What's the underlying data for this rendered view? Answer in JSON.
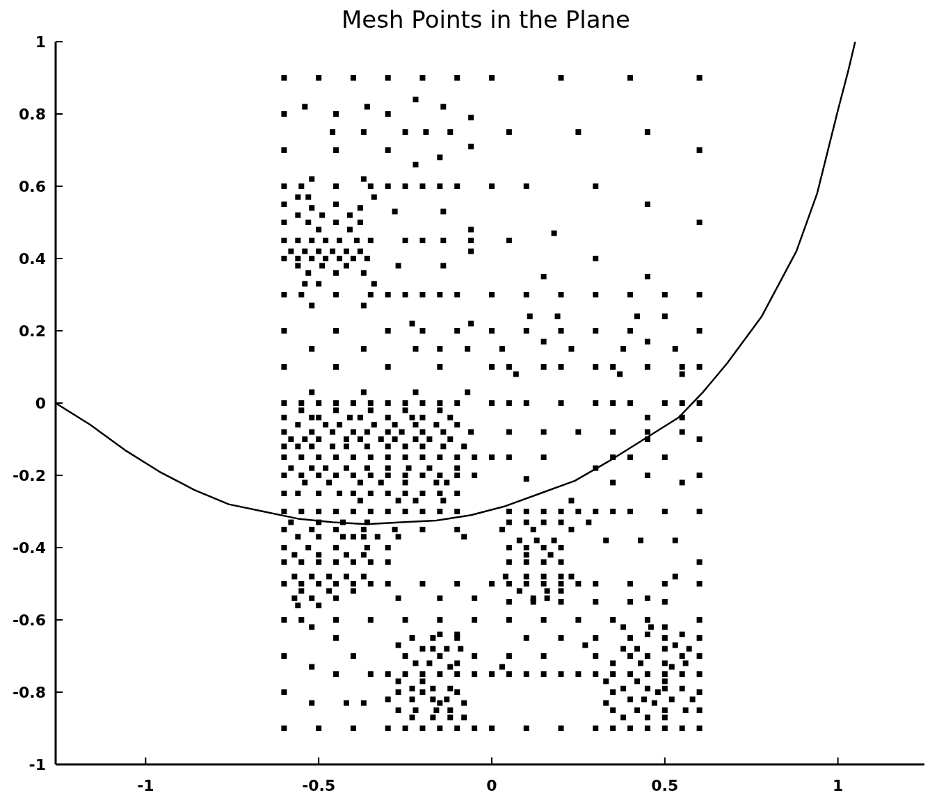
{
  "chart_data": {
    "type": "scatter",
    "title": "Mesh Points in the Plane",
    "xlim": [
      -1.26,
      1.25
    ],
    "ylim": [
      -1,
      1
    ],
    "xticks": [
      -1,
      -0.5,
      0,
      0.5,
      1
    ],
    "yticks": [
      -1,
      -0.8,
      -0.6,
      -0.4,
      -0.2,
      0,
      0.2,
      0.4,
      0.6,
      0.8,
      1
    ],
    "grid": false,
    "marker": "square",
    "series": [
      {
        "color": "#000000",
        "x": [
          -0.6,
          -0.5,
          -0.4,
          -0.3,
          -0.2,
          -0.1,
          0,
          0.2,
          0.4,
          0.6
        ],
        "values": [
          0.9,
          0.9,
          0.9,
          0.9,
          0.9,
          0.9,
          0.9,
          0.9,
          0.9,
          0.9
        ]
      },
      {
        "color": "#000000",
        "x": [
          -0.22,
          -0.54,
          -0.36,
          -0.14,
          -0.6,
          -0.45,
          -0.3,
          -0.06
        ],
        "values": [
          0.84,
          0.82,
          0.82,
          0.82,
          0.8,
          0.8,
          0.8,
          0.79
        ]
      },
      {
        "color": "#000000",
        "x": [
          -0.46,
          -0.37,
          -0.25,
          -0.19,
          -0.12,
          0.05,
          0.25,
          0.45
        ],
        "values": [
          0.75,
          0.75,
          0.75,
          0.75,
          0.75,
          0.75,
          0.75,
          0.75
        ]
      },
      {
        "color": "#000000",
        "x": [
          -0.06,
          -0.6,
          -0.45,
          -0.3,
          0.6,
          -0.15,
          -0.22,
          -0.52,
          -0.37
        ],
        "values": [
          0.71,
          0.7,
          0.7,
          0.7,
          0.7,
          0.68,
          0.66,
          0.62,
          0.62
        ]
      },
      {
        "color": "#000000",
        "x": [
          -0.6,
          -0.55,
          -0.45,
          -0.35,
          -0.3,
          -0.25,
          -0.2,
          -0.15,
          -0.1,
          0,
          0.1,
          0.3
        ],
        "values": [
          0.6,
          0.6,
          0.6,
          0.6,
          0.6,
          0.6,
          0.6,
          0.6,
          0.6,
          0.6,
          0.6,
          0.6
        ]
      },
      {
        "color": "#000000",
        "x": [
          -0.56,
          -0.53,
          -0.34,
          -0.6,
          -0.45,
          0.45,
          -0.52,
          -0.38,
          -0.28,
          -0.14
        ],
        "values": [
          0.57,
          0.57,
          0.57,
          0.55,
          0.55,
          0.55,
          0.54,
          0.54,
          0.53,
          0.53
        ]
      },
      {
        "color": "#000000",
        "x": [
          -0.56,
          -0.49,
          -0.41,
          -0.6,
          -0.53,
          -0.45,
          -0.38,
          0.6,
          -0.5,
          -0.41,
          -0.06,
          0.18
        ],
        "values": [
          0.52,
          0.52,
          0.52,
          0.5,
          0.5,
          0.5,
          0.5,
          0.5,
          0.48,
          0.48,
          0.48,
          0.47
        ]
      },
      {
        "color": "#000000",
        "x": [
          -0.6,
          -0.56,
          -0.52,
          -0.48,
          -0.44,
          -0.39,
          -0.35,
          -0.25,
          -0.2,
          -0.14,
          -0.06,
          0.05
        ],
        "values": [
          0.45,
          0.45,
          0.45,
          0.45,
          0.45,
          0.45,
          0.45,
          0.45,
          0.45,
          0.45,
          0.45,
          0.45
        ]
      },
      {
        "color": "#000000",
        "x": [
          -0.58,
          -0.54,
          -0.5,
          -0.46,
          -0.42,
          -0.38,
          -0.06
        ],
        "values": [
          0.42,
          0.42,
          0.42,
          0.42,
          0.42,
          0.42,
          0.42
        ]
      },
      {
        "color": "#000000",
        "x": [
          -0.6,
          -0.56,
          -0.52,
          -0.48,
          -0.44,
          -0.4,
          -0.36,
          0.3
        ],
        "values": [
          0.4,
          0.4,
          0.4,
          0.4,
          0.4,
          0.4,
          0.4,
          0.4
        ]
      },
      {
        "color": "#000000",
        "x": [
          -0.56,
          -0.49,
          -0.42,
          -0.27,
          -0.14,
          -0.53,
          -0.45,
          -0.37,
          0.15,
          0.45,
          -0.54,
          -0.5,
          -0.34
        ],
        "values": [
          0.38,
          0.38,
          0.38,
          0.38,
          0.38,
          0.36,
          0.36,
          0.36,
          0.35,
          0.35,
          0.33,
          0.33,
          0.33
        ]
      },
      {
        "color": "#000000",
        "x": [
          -0.6,
          -0.55,
          -0.45,
          -0.35,
          -0.3,
          -0.25,
          -0.2,
          -0.15,
          -0.1,
          0,
          0.1,
          0.2,
          0.3,
          0.4,
          0.5,
          0.6
        ],
        "values": [
          0.3,
          0.3,
          0.3,
          0.3,
          0.3,
          0.3,
          0.3,
          0.3,
          0.3,
          0.3,
          0.3,
          0.3,
          0.3,
          0.3,
          0.3,
          0.3
        ]
      },
      {
        "color": "#000000",
        "x": [
          -0.52,
          -0.37,
          0.11,
          0.19,
          0.42,
          0.5,
          -0.23,
          -0.06
        ],
        "values": [
          0.27,
          0.27,
          0.24,
          0.24,
          0.24,
          0.24,
          0.22,
          0.22
        ]
      },
      {
        "color": "#000000",
        "x": [
          -0.6,
          -0.45,
          -0.3,
          -0.2,
          -0.1,
          0,
          0.1,
          0.2,
          0.3,
          0.4,
          0.6,
          0.15,
          0.45
        ],
        "values": [
          0.2,
          0.2,
          0.2,
          0.2,
          0.2,
          0.2,
          0.2,
          0.2,
          0.2,
          0.2,
          0.2,
          0.17,
          0.17
        ]
      },
      {
        "color": "#000000",
        "x": [
          -0.52,
          -0.37,
          -0.22,
          -0.15,
          -0.07,
          0.03,
          0.23,
          0.38,
          0.53
        ],
        "values": [
          0.15,
          0.15,
          0.15,
          0.15,
          0.15,
          0.15,
          0.15,
          0.15,
          0.15
        ]
      },
      {
        "color": "#000000",
        "x": [
          -0.6,
          -0.45,
          -0.3,
          -0.15,
          0,
          0.05,
          0.15,
          0.2,
          0.3,
          0.35,
          0.45,
          0.55,
          0.6,
          0.07,
          0.37,
          0.55
        ],
        "values": [
          0.1,
          0.1,
          0.1,
          0.1,
          0.1,
          0.1,
          0.1,
          0.1,
          0.1,
          0.1,
          0.1,
          0.1,
          0.1,
          0.08,
          0.08,
          0.08
        ]
      },
      {
        "color": "#000000",
        "x": [
          -0.52,
          -0.37,
          -0.22,
          -0.07
        ],
        "values": [
          0.03,
          0.03,
          0.03,
          0.03
        ]
      },
      {
        "color": "#000000",
        "x": [
          -0.6,
          -0.55,
          -0.5,
          -0.45,
          -0.4,
          -0.35,
          -0.3,
          -0.25,
          -0.2,
          -0.15,
          -0.1,
          0,
          0.05,
          0.1,
          0.2,
          0.3,
          0.35,
          0.4,
          0.5,
          0.55,
          0.6
        ],
        "values": [
          0,
          0,
          0,
          0,
          0,
          0,
          0,
          0,
          0,
          0,
          0,
          0,
          0,
          0,
          0,
          0,
          0,
          0,
          0,
          0,
          0
        ]
      },
      {
        "color": "#000000",
        "x": [
          -0.55,
          -0.45,
          -0.35,
          -0.25,
          -0.15
        ],
        "values": [
          -0.02,
          -0.02,
          -0.02,
          -0.02,
          -0.02
        ]
      },
      {
        "color": "#000000",
        "x": [
          -0.6,
          -0.52,
          -0.5,
          -0.41,
          -0.38,
          -0.3,
          -0.23,
          -0.2,
          -0.12,
          0.45,
          0.55
        ],
        "values": [
          -0.04,
          -0.04,
          -0.04,
          -0.04,
          -0.04,
          -0.04,
          -0.04,
          -0.04,
          -0.04,
          -0.04,
          -0.04
        ]
      },
      {
        "color": "#000000",
        "x": [
          -0.56,
          -0.48,
          -0.44,
          -0.34,
          -0.28,
          -0.22,
          -0.16,
          -0.1
        ],
        "values": [
          -0.06,
          -0.06,
          -0.06,
          -0.06,
          -0.06,
          -0.06,
          -0.06,
          -0.06
        ]
      },
      {
        "color": "#000000",
        "x": [
          -0.6,
          -0.52,
          -0.46,
          -0.4,
          -0.36,
          -0.3,
          -0.26,
          -0.2,
          -0.14,
          -0.06,
          0.05,
          0.15,
          0.25,
          0.35,
          0.45,
          0.55
        ],
        "values": [
          -0.08,
          -0.08,
          -0.08,
          -0.08,
          -0.08,
          -0.08,
          -0.08,
          -0.08,
          -0.08,
          -0.08,
          -0.08,
          -0.08,
          -0.08,
          -0.08,
          -0.08,
          -0.08
        ]
      },
      {
        "color": "#000000",
        "x": [
          -0.58,
          -0.54,
          -0.5,
          -0.42,
          -0.38,
          -0.32,
          -0.28,
          -0.22,
          -0.18,
          -0.12,
          0.45,
          0.6
        ],
        "values": [
          -0.1,
          -0.1,
          -0.1,
          -0.1,
          -0.1,
          -0.1,
          -0.1,
          -0.1,
          -0.1,
          -0.1,
          -0.1,
          -0.1
        ]
      },
      {
        "color": "#000000",
        "x": [
          -0.6,
          -0.56,
          -0.52,
          -0.46,
          -0.42,
          -0.36,
          -0.3,
          -0.25,
          -0.2,
          -0.14,
          -0.08
        ],
        "values": [
          -0.12,
          -0.12,
          -0.12,
          -0.12,
          -0.12,
          -0.12,
          -0.12,
          -0.12,
          -0.12,
          -0.12,
          -0.12
        ]
      },
      {
        "color": "#000000",
        "x": [
          -0.6,
          -0.55,
          -0.5,
          -0.45,
          -0.4,
          -0.35,
          -0.3,
          -0.25,
          -0.2,
          -0.15,
          -0.1,
          -0.05,
          0,
          0.05,
          0.15,
          0.35,
          0.4,
          0.5
        ],
        "values": [
          -0.15,
          -0.15,
          -0.15,
          -0.15,
          -0.15,
          -0.15,
          -0.15,
          -0.15,
          -0.15,
          -0.15,
          -0.15,
          -0.15,
          -0.15,
          -0.15,
          -0.15,
          -0.15,
          -0.15,
          -0.15
        ]
      },
      {
        "color": "#000000",
        "x": [
          -0.58,
          -0.52,
          -0.48,
          -0.42,
          -0.36,
          -0.3,
          -0.24,
          -0.18,
          -0.1,
          0.3
        ],
        "values": [
          -0.18,
          -0.18,
          -0.18,
          -0.18,
          -0.18,
          -0.18,
          -0.18,
          -0.18,
          -0.18,
          -0.18
        ]
      },
      {
        "color": "#000000",
        "x": [
          -0.6,
          -0.55,
          -0.5,
          -0.45,
          -0.4,
          -0.35,
          -0.3,
          -0.25,
          -0.2,
          -0.15,
          -0.1,
          -0.05,
          0.45,
          0.6,
          0.1
        ],
        "values": [
          -0.2,
          -0.2,
          -0.2,
          -0.2,
          -0.2,
          -0.2,
          -0.2,
          -0.2,
          -0.2,
          -0.2,
          -0.2,
          -0.2,
          -0.2,
          -0.2,
          -0.21
        ]
      },
      {
        "color": "#000000",
        "x": [
          -0.54,
          -0.47,
          -0.38,
          -0.32,
          -0.25,
          -0.16,
          -0.13,
          0.35,
          0.55
        ],
        "values": [
          -0.22,
          -0.22,
          -0.22,
          -0.22,
          -0.22,
          -0.22,
          -0.22,
          -0.22,
          -0.22
        ]
      },
      {
        "color": "#000000",
        "x": [
          -0.6,
          -0.56,
          -0.5,
          -0.44,
          -0.4,
          -0.35,
          -0.3,
          -0.25,
          -0.2,
          -0.15,
          -0.1,
          -0.38,
          -0.27,
          -0.22,
          -0.14,
          0.23
        ],
        "values": [
          -0.25,
          -0.25,
          -0.25,
          -0.25,
          -0.25,
          -0.25,
          -0.25,
          -0.25,
          -0.25,
          -0.25,
          -0.25,
          -0.27,
          -0.27,
          -0.27,
          -0.27,
          -0.27
        ]
      },
      {
        "color": "#000000",
        "x": [
          -0.6,
          -0.55,
          -0.5,
          -0.45,
          -0.4,
          -0.35,
          -0.3,
          -0.25,
          -0.2,
          -0.15,
          -0.1,
          0.05,
          0.1,
          0.15,
          0.2,
          0.25,
          0.3,
          0.35,
          0.4,
          0.5,
          0.6
        ],
        "values": [
          -0.3,
          -0.3,
          -0.3,
          -0.3,
          -0.3,
          -0.3,
          -0.3,
          -0.3,
          -0.3,
          -0.3,
          -0.3,
          -0.3,
          -0.3,
          -0.3,
          -0.3,
          -0.3,
          -0.3,
          -0.3,
          -0.3,
          -0.3,
          -0.3
        ]
      },
      {
        "color": "#000000",
        "x": [
          -0.58,
          -0.5,
          -0.43,
          -0.36,
          0.05,
          0.1,
          0.15,
          0.2,
          0.28
        ],
        "values": [
          -0.33,
          -0.33,
          -0.33,
          -0.33,
          -0.33,
          -0.33,
          -0.33,
          -0.33,
          -0.33
        ]
      },
      {
        "color": "#000000",
        "x": [
          -0.6,
          -0.52,
          -0.45,
          -0.37,
          -0.28,
          -0.2,
          -0.1,
          0.03,
          0.12,
          0.23
        ],
        "values": [
          -0.35,
          -0.35,
          -0.35,
          -0.35,
          -0.35,
          -0.35,
          -0.35,
          -0.35,
          -0.35,
          -0.35
        ]
      },
      {
        "color": "#000000",
        "x": [
          -0.56,
          -0.5,
          -0.43,
          -0.4,
          -0.37,
          -0.33,
          -0.27,
          -0.08,
          0.08,
          0.13,
          0.18,
          0.33,
          0.43,
          0.53
        ],
        "values": [
          -0.37,
          -0.37,
          -0.37,
          -0.37,
          -0.37,
          -0.37,
          -0.37,
          -0.37,
          -0.38,
          -0.38,
          -0.38,
          -0.38,
          -0.38,
          -0.38
        ]
      },
      {
        "color": "#000000",
        "x": [
          -0.6,
          -0.53,
          -0.45,
          -0.36,
          -0.3,
          0.05,
          0.1,
          0.15,
          0.2,
          -0.57,
          -0.5,
          -0.42,
          -0.37,
          0.1,
          0.17
        ],
        "values": [
          -0.4,
          -0.4,
          -0.4,
          -0.4,
          -0.4,
          -0.4,
          -0.4,
          -0.4,
          -0.4,
          -0.42,
          -0.42,
          -0.42,
          -0.42,
          -0.42,
          -0.42
        ]
      },
      {
        "color": "#000000",
        "x": [
          -0.6,
          -0.55,
          -0.5,
          -0.45,
          -0.4,
          -0.35,
          -0.3,
          0.05,
          0.1,
          0.15,
          0.2,
          0.6
        ],
        "values": [
          -0.44,
          -0.44,
          -0.44,
          -0.44,
          -0.44,
          -0.44,
          -0.44,
          -0.44,
          -0.44,
          -0.44,
          -0.44,
          -0.44
        ]
      },
      {
        "color": "#000000",
        "x": [
          -0.57,
          -0.52,
          -0.47,
          -0.42,
          -0.37,
          0.04,
          0.1,
          0.15,
          0.2,
          0.23,
          0.53
        ],
        "values": [
          -0.48,
          -0.48,
          -0.48,
          -0.48,
          -0.48,
          -0.48,
          -0.48,
          -0.48,
          -0.48,
          -0.48,
          -0.48
        ]
      },
      {
        "color": "#000000",
        "x": [
          -0.6,
          -0.55,
          -0.5,
          -0.45,
          -0.4,
          -0.35,
          -0.3,
          -0.2,
          -0.1,
          0,
          0.05,
          0.1,
          0.15,
          0.2,
          0.25,
          0.3,
          0.4,
          0.5,
          0.6
        ],
        "values": [
          -0.5,
          -0.5,
          -0.5,
          -0.5,
          -0.5,
          -0.5,
          -0.5,
          -0.5,
          -0.5,
          -0.5,
          -0.5,
          -0.5,
          -0.5,
          -0.5,
          -0.5,
          -0.5,
          -0.5,
          -0.5,
          -0.5
        ]
      },
      {
        "color": "#000000",
        "x": [
          -0.55,
          -0.47,
          -0.4,
          0.08,
          0.16,
          0.2,
          -0.57,
          -0.52,
          -0.45,
          -0.27,
          -0.15,
          -0.05,
          0.12,
          0.16,
          0.45
        ],
        "values": [
          -0.52,
          -0.52,
          -0.52,
          -0.52,
          -0.52,
          -0.52,
          -0.54,
          -0.54,
          -0.54,
          -0.54,
          -0.54,
          -0.54,
          -0.54,
          -0.54,
          -0.54
        ]
      },
      {
        "color": "#000000",
        "x": [
          0.05,
          0.12,
          0.2,
          0.3,
          0.4,
          0.5,
          -0.56,
          -0.5
        ],
        "values": [
          -0.55,
          -0.55,
          -0.55,
          -0.55,
          -0.55,
          -0.55,
          -0.56,
          -0.56
        ]
      },
      {
        "color": "#000000",
        "x": [
          -0.6,
          -0.55,
          -0.45,
          -0.35,
          -0.25,
          -0.15,
          -0.05,
          0.05,
          0.15,
          0.25,
          0.35,
          0.45,
          0.6
        ],
        "values": [
          -0.6,
          -0.6,
          -0.6,
          -0.6,
          -0.6,
          -0.6,
          -0.6,
          -0.6,
          -0.6,
          -0.6,
          -0.6,
          -0.6,
          -0.6
        ]
      },
      {
        "color": "#000000",
        "x": [
          -0.52,
          0.38,
          0.46,
          0.5,
          -0.15,
          -0.1,
          0.45,
          0.55
        ],
        "values": [
          -0.62,
          -0.62,
          -0.62,
          -0.62,
          -0.64,
          -0.64,
          -0.64,
          -0.64
        ]
      },
      {
        "color": "#000000",
        "x": [
          -0.45,
          -0.23,
          -0.17,
          -0.1,
          0.1,
          0.2,
          0.3,
          0.4,
          0.5,
          0.6,
          -0.27,
          0.27,
          0.53
        ],
        "values": [
          -0.65,
          -0.65,
          -0.65,
          -0.65,
          -0.65,
          -0.65,
          -0.65,
          -0.65,
          -0.65,
          -0.65,
          -0.67,
          -0.67,
          -0.67
        ]
      },
      {
        "color": "#000000",
        "x": [
          -0.2,
          -0.17,
          -0.13,
          -0.09,
          0.38,
          0.42,
          0.5,
          0.57
        ],
        "values": [
          -0.68,
          -0.68,
          -0.68,
          -0.68,
          -0.68,
          -0.68,
          -0.68,
          -0.68
        ]
      },
      {
        "color": "#000000",
        "x": [
          -0.6,
          -0.4,
          -0.25,
          -0.15,
          -0.05,
          0.05,
          0.15,
          0.3,
          0.4,
          0.45,
          0.55,
          0.6
        ],
        "values": [
          -0.7,
          -0.7,
          -0.7,
          -0.7,
          -0.7,
          -0.7,
          -0.7,
          -0.7,
          -0.7,
          -0.7,
          -0.7,
          -0.7
        ]
      },
      {
        "color": "#000000",
        "x": [
          -0.22,
          -0.18,
          -0.1,
          0.35,
          0.43,
          0.5,
          0.56,
          -0.52,
          -0.12,
          0.03,
          0.52
        ],
        "values": [
          -0.72,
          -0.72,
          -0.72,
          -0.72,
          -0.72,
          -0.72,
          -0.72,
          -0.73,
          -0.73,
          -0.73,
          -0.73
        ]
      },
      {
        "color": "#000000",
        "x": [
          -0.45,
          -0.35,
          -0.3,
          -0.25,
          -0.2,
          -0.15,
          -0.1,
          -0.05,
          0,
          0.05,
          0.1,
          0.15,
          0.2,
          0.25,
          0.3,
          0.35,
          0.4,
          0.45,
          0.5,
          0.55,
          0.6
        ],
        "values": [
          -0.75,
          -0.75,
          -0.75,
          -0.75,
          -0.75,
          -0.75,
          -0.75,
          -0.75,
          -0.75,
          -0.75,
          -0.75,
          -0.75,
          -0.75,
          -0.75,
          -0.75,
          -0.75,
          -0.75,
          -0.75,
          -0.75,
          -0.75,
          -0.75
        ]
      },
      {
        "color": "#000000",
        "x": [
          -0.27,
          -0.2,
          0.33,
          0.42,
          0.5,
          -0.23,
          -0.17,
          -0.12,
          0.38,
          0.45,
          0.5,
          0.55
        ],
        "values": [
          -0.77,
          -0.77,
          -0.77,
          -0.77,
          -0.77,
          -0.79,
          -0.79,
          -0.79,
          -0.79,
          -0.79,
          -0.79,
          -0.79
        ]
      },
      {
        "color": "#000000",
        "x": [
          -0.6,
          -0.27,
          -0.2,
          -0.1,
          0.35,
          0.48,
          0.6,
          -0.3,
          -0.23,
          -0.17,
          -0.13,
          0.4,
          0.44,
          0.52,
          0.58
        ],
        "values": [
          -0.8,
          -0.8,
          -0.8,
          -0.8,
          -0.8,
          -0.8,
          -0.8,
          -0.82,
          -0.82,
          -0.82,
          -0.82,
          -0.82,
          -0.82,
          -0.82,
          -0.82
        ]
      },
      {
        "color": "#000000",
        "x": [
          -0.52,
          -0.42,
          -0.37,
          -0.15,
          -0.08,
          0.33,
          0.47
        ],
        "values": [
          -0.83,
          -0.83,
          -0.83,
          -0.83,
          -0.83,
          -0.83,
          -0.83
        ]
      },
      {
        "color": "#000000",
        "x": [
          -0.27,
          -0.22,
          -0.16,
          -0.12,
          0.35,
          0.42,
          0.5,
          0.56,
          0.6,
          -0.23,
          -0.17,
          -0.12,
          -0.08,
          0.38,
          0.45,
          0.5
        ],
        "values": [
          -0.85,
          -0.85,
          -0.85,
          -0.85,
          -0.85,
          -0.85,
          -0.85,
          -0.85,
          -0.85,
          -0.87,
          -0.87,
          -0.87,
          -0.87,
          -0.87,
          -0.87,
          -0.87
        ]
      },
      {
        "color": "#000000",
        "x": [
          -0.6,
          -0.5,
          -0.4,
          -0.3,
          -0.25,
          -0.2,
          -0.15,
          -0.1,
          -0.05,
          0,
          0.1,
          0.2,
          0.3,
          0.35,
          0.4,
          0.45,
          0.5,
          0.55,
          0.6
        ],
        "values": [
          -0.9,
          -0.9,
          -0.9,
          -0.9,
          -0.9,
          -0.9,
          -0.9,
          -0.9,
          -0.9,
          -0.9,
          -0.9,
          -0.9,
          -0.9,
          -0.9,
          -0.9,
          -0.9,
          -0.9,
          -0.9,
          -0.9
        ]
      },
      {
        "type": "line",
        "color": "#000000",
        "marker": "none",
        "x": [
          -1.26,
          -1.16,
          -1.06,
          -0.96,
          -0.86,
          -0.76,
          -0.66,
          -0.56,
          -0.46,
          -0.36,
          -0.26,
          -0.16,
          -0.06,
          0.04,
          0.14,
          0.24,
          0.34,
          0.44,
          0.54,
          0.61,
          0.68,
          0.78,
          0.88,
          0.94,
          1.0,
          1.03,
          1.05
        ],
        "values": [
          0.0,
          -0.06,
          -0.13,
          -0.19,
          -0.24,
          -0.28,
          -0.3,
          -0.32,
          -0.33,
          -0.335,
          -0.33,
          -0.325,
          -0.31,
          -0.285,
          -0.25,
          -0.215,
          -0.16,
          -0.1,
          -0.04,
          0.03,
          0.11,
          0.24,
          0.42,
          0.58,
          0.81,
          0.92,
          1.0
        ]
      }
    ]
  }
}
